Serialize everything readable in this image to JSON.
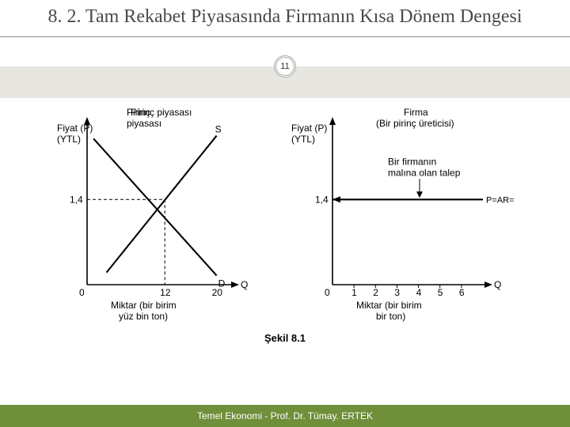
{
  "slide": {
    "title": "8. 2. Tam Rekabet Piyasasında Firmanın Kısa Dönem Dengesi",
    "page_number": "11",
    "figure_caption": "Şekil 8.1",
    "footer": "Temel Ekonomi - Prof. Dr. Tümay. ERTEK"
  },
  "colors": {
    "title_text": "#4a4a4a",
    "band": "#e8e6e1",
    "footer_bg": "#6f8f3a",
    "footer_text": "#ffffff",
    "axis": "#000000",
    "line": "#000000",
    "dash": "#000000",
    "bg": "#ffffff"
  },
  "left_chart": {
    "title": "Pirinç piyasası",
    "y_label_l1": "Fiyat (P)",
    "y_label_l2": "(YTL)",
    "x_label_l1": "Miktar (bir birim",
    "x_label_l2": "yüz bin ton)",
    "x_axis_end": "Q",
    "origin_label": "0",
    "y_tick_value": "1,4",
    "x_tick_values": [
      "12",
      "20"
    ],
    "curve_S": "S",
    "curve_D": "D",
    "xlim": [
      0,
      22
    ],
    "ylim": [
      0,
      2.6
    ],
    "eq_x": 12,
    "eq_y": 1.4,
    "d_end_x": 20,
    "s_start_x": 3,
    "s_end_x": 20,
    "line_width": 1.6
  },
  "right_chart": {
    "title_l1": "Firma",
    "title_l2": "(Bir pirinç üreticisi)",
    "y_label_l1": "Fiyat (P)",
    "y_label_l2": "(YTL)",
    "x_label_l1": "Miktar (bir birim",
    "x_label_l2": "bir ton)",
    "x_axis_end": "Q",
    "origin_label": "0",
    "y_tick_value": "1,4",
    "x_ticks": [
      "1",
      "2",
      "3",
      "4",
      "5",
      "6"
    ],
    "demand_annotation_l1": "Bir firmanın",
    "demand_annotation_l2": "malına olan talep",
    "demand_line_label": "P=AR=MR",
    "xlim": [
      0,
      7
    ],
    "ylim": [
      0,
      2.6
    ],
    "price_level": 1.4,
    "line_width": 1.6
  }
}
